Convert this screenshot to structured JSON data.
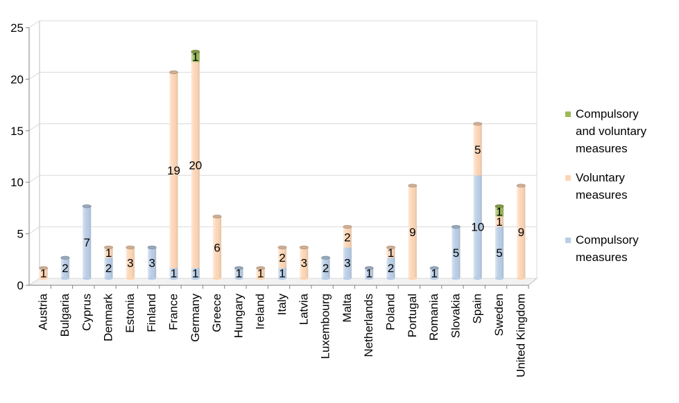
{
  "chart_data": {
    "type": "bar",
    "stacked": true,
    "categories": [
      "Austria",
      "Bulgaria",
      "Cyprus",
      "Denmark",
      "Estonia",
      "Finland",
      "France",
      "Germany",
      "Greece",
      "Hungary",
      "Ireland",
      "Italy",
      "Latvia",
      "Luxembourg",
      "Malta",
      "Netherlands",
      "Poland",
      "Portugal",
      "Romania",
      "Slovakia",
      "Spain",
      "Sweden",
      "United Kingdom"
    ],
    "series": [
      {
        "name": "Compulsory measures",
        "color": "#b9cde5",
        "values": [
          0,
          2,
          7,
          2,
          0,
          3,
          1,
          1,
          0,
          1,
          0,
          1,
          0,
          2,
          3,
          1,
          2,
          0,
          1,
          5,
          10,
          5,
          0
        ]
      },
      {
        "name": "Voluntary measures",
        "color": "#fcd5b5",
        "values": [
          1,
          0,
          0,
          1,
          3,
          0,
          19,
          20,
          6,
          0,
          1,
          2,
          3,
          0,
          2,
          0,
          1,
          9,
          0,
          0,
          5,
          1,
          9
        ]
      },
      {
        "name": "Compulsory and voluntary measures",
        "color": "#9bbb59",
        "values": [
          0,
          0,
          0,
          0,
          0,
          0,
          0,
          1,
          0,
          0,
          0,
          0,
          0,
          0,
          0,
          0,
          0,
          0,
          0,
          0,
          0,
          1,
          0
        ]
      }
    ],
    "ylim": [
      0,
      25
    ],
    "yticks": [
      0,
      5,
      10,
      15,
      20,
      25
    ],
    "grid": true,
    "legend": "right",
    "legend_order": [
      {
        "label_lines": [
          "Compulsory",
          "and voluntary",
          "measures"
        ]
      },
      {
        "label_lines": [
          "Voluntary",
          "measures"
        ]
      },
      {
        "label_lines": [
          "Compulsory",
          "measures"
        ]
      }
    ]
  }
}
